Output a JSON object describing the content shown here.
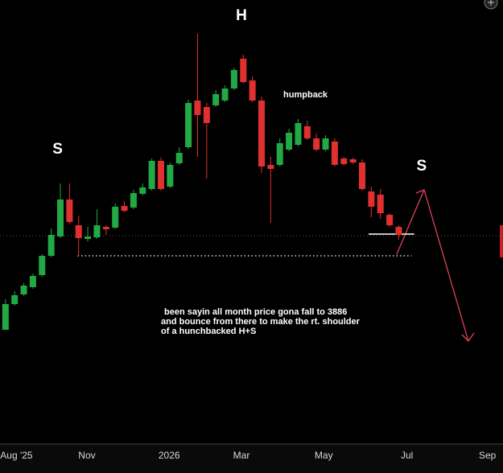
{
  "chart_data": {
    "type": "candlestick",
    "x": [
      0.6,
      1.6,
      2.6,
      3.6,
      4.6,
      5.6,
      6.6,
      7.6,
      8.6,
      9.6,
      10.6,
      11.6,
      12.6,
      13.6,
      14.6,
      15.6,
      16.6,
      17.6,
      18.6,
      19.6,
      20.6,
      21.6,
      22.6,
      23.6,
      24.6,
      25.6,
      26.6,
      27.6,
      28.6,
      29.6,
      30.6,
      31.6,
      32.6,
      33.6,
      34.6,
      35.6,
      36.6,
      37.6,
      38.6,
      39.6,
      40.6,
      41.6,
      42.6,
      43.6
    ],
    "open": [
      140,
      172,
      184,
      193,
      208,
      232,
      256,
      302,
      270,
      253,
      255,
      268,
      267,
      294,
      292,
      309,
      315,
      350,
      318,
      347,
      367,
      425,
      417,
      419,
      425,
      440,
      477,
      450,
      425,
      345,
      345,
      364,
      370,
      393,
      378,
      364,
      374,
      353,
      352,
      348,
      312,
      308,
      283,
      268
    ],
    "high": [
      178,
      188,
      198,
      210,
      234,
      266,
      322,
      322,
      282,
      268,
      290,
      270,
      297,
      300,
      314,
      322,
      353,
      354,
      348,
      367,
      426,
      508,
      422,
      438,
      444,
      466,
      482,
      455,
      430,
      355,
      378,
      390,
      402,
      400,
      384,
      382,
      378,
      355,
      354,
      352,
      318,
      315,
      285,
      270
    ],
    "low": [
      140,
      170,
      182,
      191,
      206,
      230,
      254,
      272,
      232,
      250,
      253,
      258,
      265,
      286,
      290,
      307,
      313,
      313,
      316,
      345,
      365,
      355,
      328,
      417,
      423,
      438,
      446,
      423,
      335,
      273,
      343,
      362,
      368,
      376,
      362,
      362,
      343,
      344,
      346,
      313,
      280,
      278,
      268,
      252
    ],
    "close": [
      172,
      183,
      195,
      207,
      232,
      258,
      302,
      274,
      254,
      256,
      270,
      265,
      293,
      288,
      310,
      317,
      350,
      315,
      345,
      360,
      422,
      407,
      397,
      433,
      440,
      463,
      448,
      425,
      343,
      340,
      372,
      385,
      397,
      378,
      364,
      378,
      345,
      346,
      348,
      315,
      293,
      285,
      270,
      258
    ],
    "up_color": "#22a845",
    "down_color": "#e0302f",
    "xlim": [
      0,
      55
    ],
    "ylim": [
      0,
      550
    ],
    "xticks": [
      {
        "value": 1.8,
        "label": "Aug '25"
      },
      {
        "value": 9.5,
        "label": "Nov"
      },
      {
        "value": 18.5,
        "label": "2026"
      },
      {
        "value": 26.4,
        "label": "Mar"
      },
      {
        "value": 35.4,
        "label": "May"
      },
      {
        "value": 44.5,
        "label": "Jul"
      },
      {
        "value": 53.3,
        "label": "Sep"
      }
    ],
    "levels": [
      {
        "value": 232,
        "x": [
          8.5,
          45
        ]
      },
      {
        "value": 259,
        "x": [
          40.3,
          45.3
        ]
      }
    ],
    "labels": [
      {
        "text": "S",
        "x": 6.3,
        "y": 364
      },
      {
        "text": "H",
        "x": 26.4,
        "y": 530
      },
      {
        "text": "humpback",
        "x": 33.4,
        "y": 432
      },
      {
        "text": "S",
        "x": 46.1,
        "y": 343
      }
    ],
    "note": [
      "been sayin all month price gona fall to 3886",
      "and bounce from there to make the rt. shoulder",
      "of a hunchbacked H+S"
    ]
  }
}
